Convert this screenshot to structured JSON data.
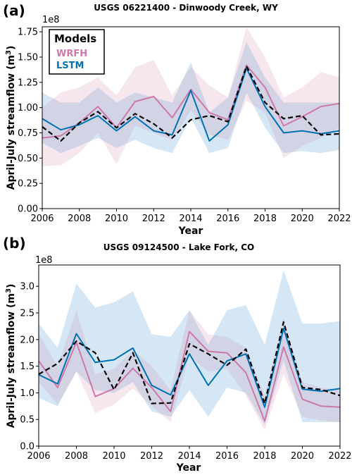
{
  "colors": {
    "wrfh": "#cc79a7",
    "lstm": "#0072b2",
    "observed": "#000000",
    "wrfh_band": "#cc79a7",
    "lstm_band": "#56a0d3"
  },
  "chart_data": [
    {
      "type": "line",
      "panel_label": "(a)",
      "title": "USGS 06221400 - Dinwoody Creek, WY",
      "xlabel": "Year",
      "ylabel": "April-July streamflow (m",
      "ylabel_sup": "3",
      "ylabel_close": ")",
      "multiplier": "1e8",
      "xlim": [
        2006,
        2022
      ],
      "ylim": [
        0,
        1.8
      ],
      "xticks": [
        2006,
        2008,
        2010,
        2012,
        2014,
        2016,
        2018,
        2020,
        2022
      ],
      "yticks": [
        "0.00",
        "0.25",
        "0.50",
        "0.75",
        "1.00",
        "1.25",
        "1.50",
        "1.75"
      ],
      "ytick_values": [
        0,
        0.25,
        0.5,
        0.75,
        1.0,
        1.25,
        1.5,
        1.75
      ],
      "x": [
        2006,
        2007,
        2008,
        2009,
        2010,
        2011,
        2012,
        2013,
        2014,
        2015,
        2016,
        2017,
        2018,
        2019,
        2020,
        2021,
        2022
      ],
      "legend": {
        "title": "Models",
        "placement": "upper-left",
        "entries": [
          "WRFH",
          "LSTM"
        ]
      },
      "series": [
        {
          "name": "WRFH",
          "values": [
            0.7,
            0.72,
            0.85,
            1.01,
            0.8,
            1.06,
            1.11,
            0.9,
            1.18,
            0.95,
            0.88,
            1.42,
            1.2,
            0.82,
            0.91,
            1.01,
            1.04
          ]
        },
        {
          "name": "LSTM",
          "values": [
            0.89,
            0.78,
            0.83,
            0.92,
            0.77,
            0.91,
            0.77,
            0.73,
            1.17,
            0.67,
            0.83,
            1.39,
            1.01,
            0.75,
            0.77,
            0.74,
            0.77
          ]
        },
        {
          "values": [
            0.81,
            0.67,
            0.85,
            0.96,
            0.8,
            0.94,
            0.84,
            0.7,
            0.88,
            0.92,
            0.86,
            1.41,
            1.05,
            0.89,
            0.92,
            0.73,
            0.74
          ]
        }
      ],
      "wrfh_band": {
        "upper": [
          1.0,
          1.15,
          1.2,
          1.3,
          1.12,
          1.4,
          1.47,
          1.12,
          1.4,
          1.22,
          1.1,
          1.8,
          1.5,
          1.1,
          1.2,
          1.35,
          1.3
        ],
        "lower": [
          0.42,
          0.43,
          0.55,
          0.75,
          0.44,
          0.82,
          0.75,
          0.68,
          0.97,
          0.73,
          0.68,
          1.07,
          0.95,
          0.5,
          0.62,
          0.7,
          0.8
        ]
      },
      "lstm_band": {
        "upper": [
          1.15,
          1.05,
          1.05,
          1.2,
          1.05,
          1.15,
          1.1,
          1.05,
          1.45,
          0.95,
          1.1,
          1.65,
          1.3,
          1.05,
          1.05,
          1.05,
          1.05
        ],
        "lower": [
          0.65,
          0.55,
          0.62,
          0.7,
          0.6,
          0.68,
          0.6,
          0.55,
          0.9,
          0.55,
          0.6,
          1.15,
          0.8,
          0.55,
          0.57,
          0.55,
          0.58
        ]
      }
    },
    {
      "type": "line",
      "panel_label": "(b)",
      "title": "USGS 09124500 - Lake Fork, CO",
      "xlabel": "Year",
      "ylabel": "April-July streamflow (m",
      "ylabel_sup": "3",
      "ylabel_close": ")",
      "multiplier": "1e8",
      "xlim": [
        2006,
        2022
      ],
      "ylim": [
        0,
        3.4
      ],
      "xticks": [
        2006,
        2008,
        2010,
        2012,
        2014,
        2016,
        2018,
        2020,
        2022
      ],
      "yticks": [
        "0.0",
        "0.5",
        "1.0",
        "1.5",
        "2.0",
        "2.5",
        "3.0"
      ],
      "ytick_values": [
        0,
        0.5,
        1.0,
        1.5,
        2.0,
        2.5,
        3.0
      ],
      "x": [
        2006,
        2007,
        2008,
        2009,
        2010,
        2011,
        2012,
        2013,
        2014,
        2015,
        2016,
        2017,
        2018,
        2019,
        2020,
        2021,
        2022
      ],
      "series": [
        {
          "name": "WRFH",
          "values": [
            1.6,
            1.1,
            1.95,
            0.93,
            1.08,
            1.46,
            1.1,
            0.65,
            2.15,
            1.78,
            1.75,
            1.38,
            0.47,
            1.86,
            0.88,
            0.75,
            0.73
          ]
        },
        {
          "name": "LSTM",
          "values": [
            1.34,
            1.17,
            2.11,
            1.57,
            1.62,
            1.84,
            1.14,
            0.96,
            1.73,
            1.14,
            1.6,
            1.73,
            0.73,
            2.21,
            1.07,
            1.03,
            1.08
          ]
        },
        {
          "values": [
            1.35,
            1.55,
            1.97,
            1.75,
            1.06,
            1.75,
            0.8,
            0.81,
            1.92,
            1.73,
            1.52,
            1.82,
            0.8,
            2.33,
            1.1,
            1.06,
            0.95
          ]
        }
      ],
      "wrfh_band": {
        "upper": [
          2.1,
          1.5,
          2.55,
          1.35,
          1.45,
          1.8,
          1.5,
          1.05,
          2.55,
          2.1,
          2.05,
          1.85,
          0.95,
          2.4,
          1.2,
          1.1,
          1.05
        ],
        "lower": [
          1.2,
          0.78,
          1.4,
          0.62,
          0.78,
          1.08,
          0.75,
          0.45,
          1.7,
          1.4,
          1.45,
          0.95,
          0.3,
          1.35,
          0.55,
          0.48,
          0.45
        ]
      },
      "lstm_band": {
        "upper": [
          2.3,
          1.85,
          3.05,
          2.6,
          2.7,
          2.9,
          2.1,
          2.05,
          2.55,
          1.9,
          2.55,
          2.65,
          1.9,
          3.3,
          2.3,
          2.3,
          2.35
        ],
        "lower": [
          0.9,
          0.75,
          1.4,
          1.05,
          1.0,
          1.2,
          0.65,
          0.55,
          1.05,
          0.55,
          1.1,
          1.0,
          0.4,
          1.6,
          0.45,
          0.45,
          0.45
        ]
      }
    }
  ]
}
